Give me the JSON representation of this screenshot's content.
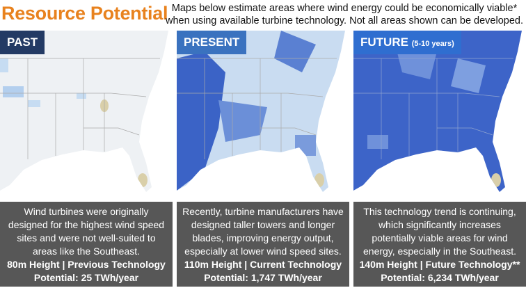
{
  "header": {
    "title": "Resource Potential",
    "subtitle_lines": [
      "Maps below estimate areas where wind energy could be economically viable*",
      "when using available turbine technology.  Not all areas shown can be developed."
    ]
  },
  "panels": [
    {
      "label": "PAST",
      "description": "Wind turbines were originally designed for the highest wind speed sites and were not well-suited to areas like the Southeast.",
      "height_line": "80m Height | Previous Technology",
      "potential_line": "Potential: 25 TWh/year"
    },
    {
      "label": "PRESENT",
      "description": "Recently, turbine manufacturers have designed taller towers and longer blades, improving energy output, especially at lower wind speed sites.",
      "height_line": "110m Height | Current Technology",
      "potential_line": "Potential: 1,747 TWh/year"
    },
    {
      "label": "FUTURE",
      "label_note": "(5-10 years)",
      "description": "This technology trend is continuing, which significantly increases potentially viable areas for wind energy, especially in the Southeast.",
      "height_line": "140m Height | Future Technology**",
      "potential_line": "Potential: 6,234 TWh/year"
    }
  ]
}
